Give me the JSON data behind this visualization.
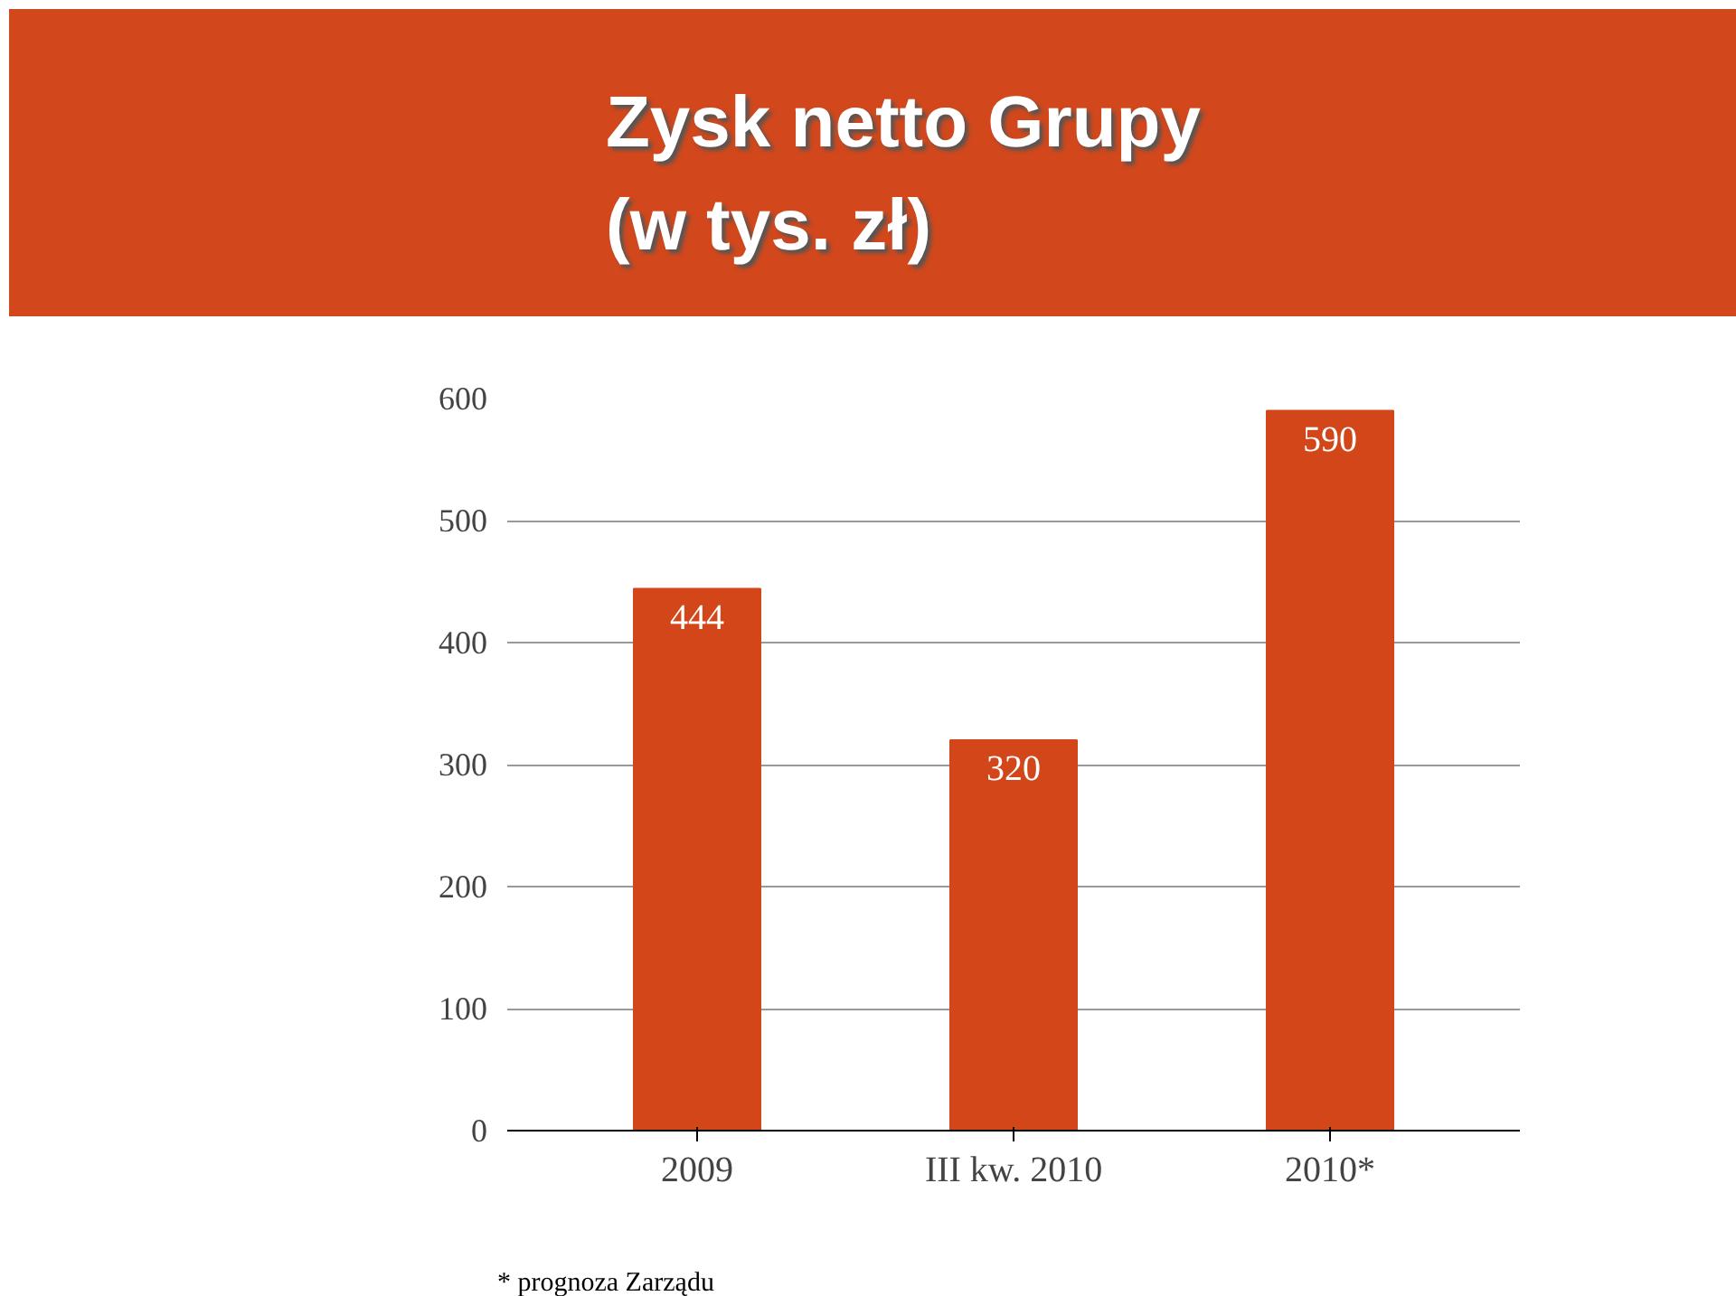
{
  "chart_data": {
    "type": "bar",
    "title": "Zysk netto Grupy\n(w tys. zł)",
    "categories": [
      "2009",
      "III kw. 2010",
      "2010*"
    ],
    "values": [
      444,
      320,
      590
    ],
    "color": "#d2461a",
    "ylim": [
      0,
      600
    ],
    "yticks": [
      0,
      100,
      200,
      300,
      400,
      500,
      600
    ],
    "grid": "y",
    "data_labels": true,
    "annotations": [
      "* prognoza Zarządu"
    ]
  }
}
